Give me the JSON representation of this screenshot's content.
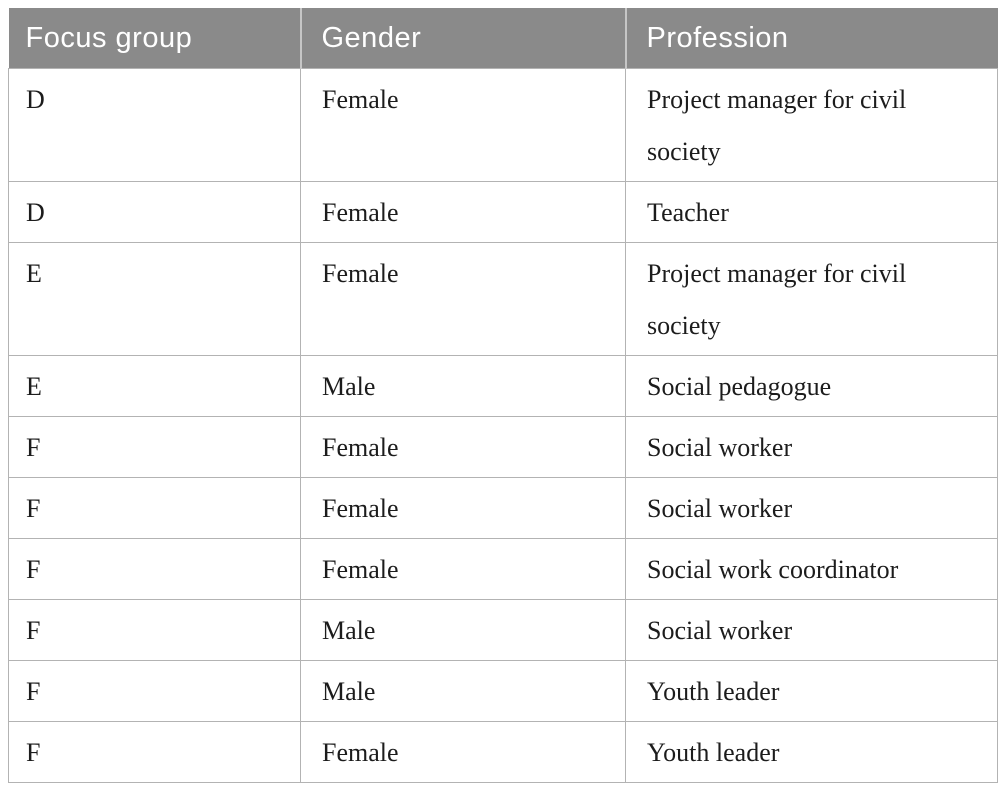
{
  "table": {
    "headers": [
      "Focus group",
      "Gender",
      "Profession"
    ],
    "rows": [
      {
        "focus_group": "D",
        "gender": "Female",
        "profession": "Project manager for civil society"
      },
      {
        "focus_group": "D",
        "gender": "Female",
        "profession": "Teacher"
      },
      {
        "focus_group": "E",
        "gender": "Female",
        "profession": "Project manager for civil society"
      },
      {
        "focus_group": "E",
        "gender": "Male",
        "profession": "Social pedagogue"
      },
      {
        "focus_group": "F",
        "gender": "Female",
        "profession": "Social worker"
      },
      {
        "focus_group": "F",
        "gender": "Female",
        "profession": "Social worker"
      },
      {
        "focus_group": "F",
        "gender": "Female",
        "profession": "Social work coordinator"
      },
      {
        "focus_group": "F",
        "gender": "Male",
        "profession": "Social worker"
      },
      {
        "focus_group": "F",
        "gender": "Male",
        "profession": "Youth leader"
      },
      {
        "focus_group": "F",
        "gender": "Female",
        "profession": "Youth leader"
      }
    ]
  },
  "theme": {
    "page_bg": "#ffffff",
    "header_bg": "#8a8a8a",
    "header_text": "#ffffff",
    "header_divider": "#c6c6c6",
    "body_text": "#1c1c1c",
    "border_color": "#b3b3b3"
  }
}
